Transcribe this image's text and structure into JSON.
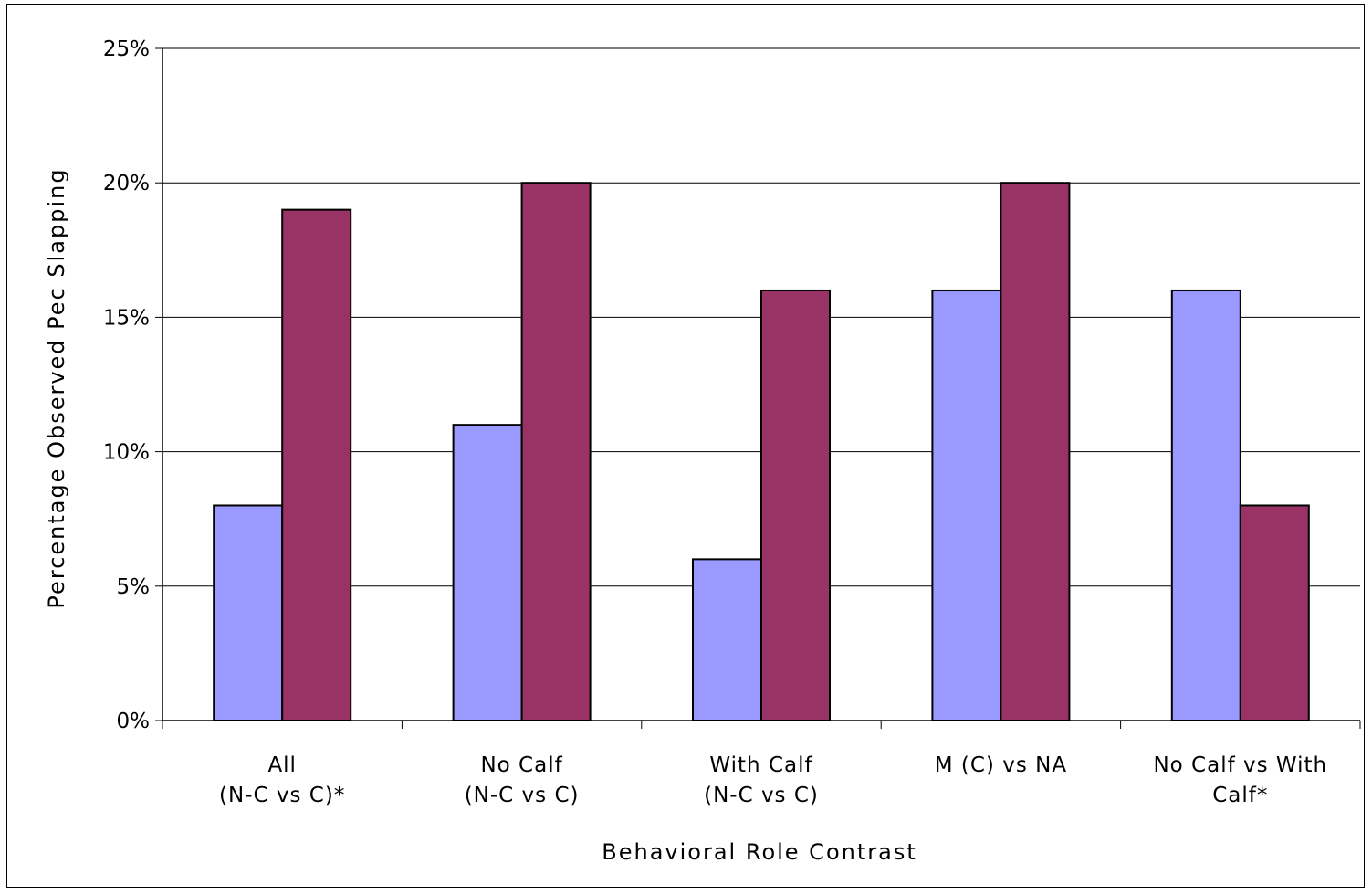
{
  "chart_data": {
    "type": "bar",
    "title": "",
    "xlabel": "Behavioral Role Contrast",
    "ylabel": "Percentage Observed Pec Slapping",
    "categories": [
      [
        "All",
        "(N-C vs C)*"
      ],
      [
        "No Calf",
        "(N-C vs C)"
      ],
      [
        "With Calf",
        "(N-C vs C)"
      ],
      [
        "M (C) vs NA"
      ],
      [
        "No Calf vs With",
        "Calf*"
      ]
    ],
    "series": [
      {
        "color": "#9999ff",
        "values": [
          8,
          11,
          6,
          16,
          16
        ]
      },
      {
        "color": "#993366",
        "values": [
          19,
          20,
          16,
          20,
          8
        ]
      }
    ],
    "yticks": [
      "0%",
      "5%",
      "10%",
      "15%",
      "20%",
      "25%"
    ],
    "ylim": [
      0,
      25
    ],
    "grid": true,
    "legend": "none"
  }
}
